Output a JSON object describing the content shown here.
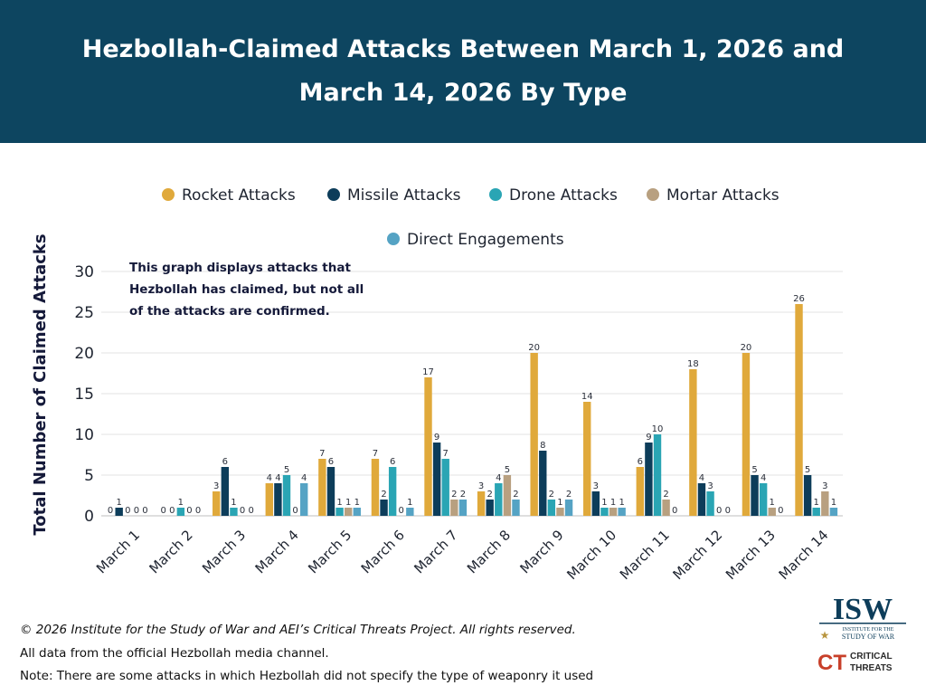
{
  "header": {
    "title_line1": "Hezbollah-Claimed Attacks Between March 1, 2026 and",
    "title_line2": "March 14, 2026 By Type"
  },
  "annotation": {
    "line1": "This graph displays attacks that",
    "line2": "Hezbollah has claimed, but not all",
    "line3": "of the attacks are confirmed."
  },
  "footer": {
    "copyright": "© 2026 Institute for the Study of War and AEI’s Critical Threats Project. All rights reserved.",
    "source": "All data from the official Hezbollah media channel.",
    "note": "Note: There are some attacks in which Hezbollah did not specify the type of weaponry it used"
  },
  "logos": {
    "isw_text": "ISW",
    "isw_sub1": "INSTITUTE FOR THE",
    "isw_sub2": "STUDY OF WAR",
    "ct_mark": "CT",
    "ct_text1": "CRITICAL",
    "ct_text2": "THREATS"
  },
  "chart_data": {
    "type": "bar",
    "title": "Hezbollah-Claimed Attacks Between March 1, 2026 and March 14, 2026 By Type",
    "xlabel": "",
    "ylabel": "Total Number of Claimed Attacks",
    "ylim": [
      0,
      30
    ],
    "yticks": [
      0,
      5,
      10,
      15,
      20,
      25,
      30
    ],
    "grid": true,
    "legend_position": "top",
    "categories": [
      "March 1",
      "March 2",
      "March 3",
      "March 4",
      "March 5",
      "March 6",
      "March 7",
      "March 8",
      "March 9",
      "March 10",
      "March 11",
      "March 12",
      "March 13",
      "March 14"
    ],
    "series": [
      {
        "name": "Rocket Attacks",
        "color": "#e0a93b",
        "values": [
          0,
          0,
          3,
          4,
          7,
          7,
          17,
          3,
          20,
          14,
          6,
          18,
          20,
          26
        ]
      },
      {
        "name": "Missile Attacks",
        "color": "#0d3d5a",
        "values": [
          1,
          0,
          6,
          4,
          6,
          2,
          9,
          2,
          8,
          3,
          9,
          4,
          5,
          5
        ]
      },
      {
        "name": "Drone Attacks",
        "color": "#2aa5b4",
        "values": [
          0,
          1,
          1,
          5,
          1,
          6,
          7,
          4,
          2,
          1,
          10,
          3,
          4,
          1
        ]
      },
      {
        "name": "Mortar Attacks",
        "color": "#b8a080",
        "values": [
          0,
          0,
          0,
          0,
          1,
          0,
          2,
          5,
          1,
          1,
          2,
          0,
          1,
          3
        ]
      },
      {
        "name": "Direct Engagements",
        "color": "#55a3c4",
        "values": [
          0,
          0,
          0,
          4,
          1,
          1,
          2,
          2,
          2,
          1,
          0,
          0,
          0,
          1
        ]
      }
    ]
  }
}
